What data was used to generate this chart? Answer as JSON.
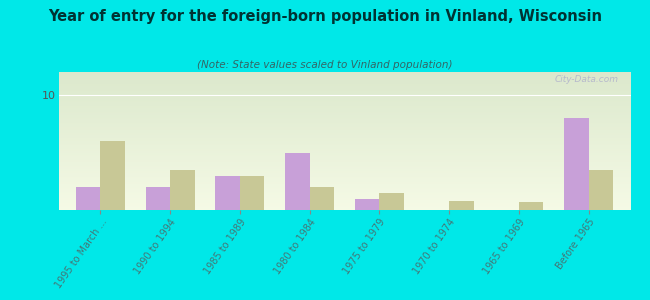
{
  "title": "Year of entry for the foreign-born population in Vinland, Wisconsin",
  "subtitle": "(Note: State values scaled to Vinland population)",
  "categories": [
    "1995 to March ...",
    "1990 to 1994",
    "1985 to 1989",
    "1980 to 1984",
    "1975 to 1979",
    "1970 to 1974",
    "1965 to 1969",
    "Before 1965"
  ],
  "vinland_values": [
    2,
    2,
    3,
    5,
    1,
    0,
    0,
    8
  ],
  "wisconsin_values": [
    6,
    3.5,
    3,
    2,
    1.5,
    0.8,
    0.7,
    3.5
  ],
  "vinland_color": "#c8a0d8",
  "wisconsin_color": "#c8c896",
  "outer_bg": "#00e8e8",
  "ylim": [
    0,
    12
  ],
  "yticks": [
    0,
    10
  ],
  "bar_width": 0.35,
  "watermark": "City-Data.com",
  "title_color": "#003333",
  "subtitle_color": "#336666",
  "tick_label_color": "#447777"
}
